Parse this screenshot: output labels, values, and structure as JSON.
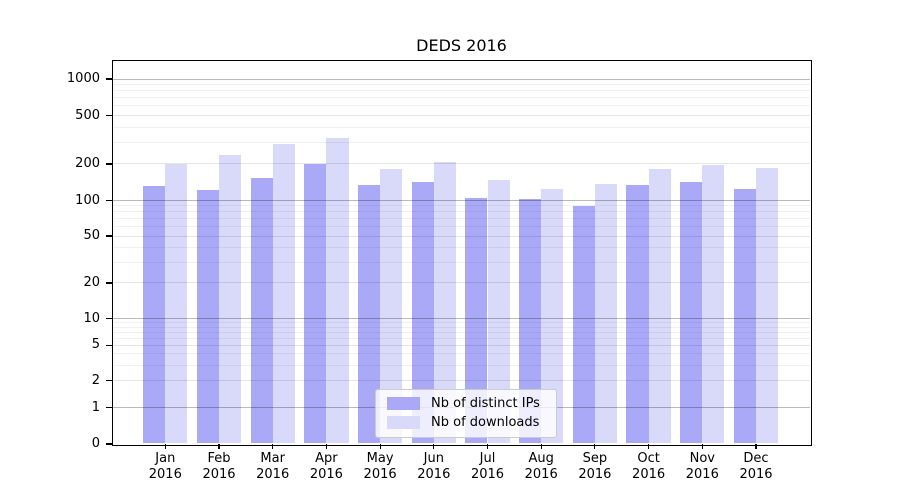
{
  "chart_data": {
    "type": "bar",
    "title": "DEDS 2016",
    "categories": [
      "Jan 2016",
      "Feb 2016",
      "Mar 2016",
      "Apr 2016",
      "May 2016",
      "Jun 2016",
      "Jul 2016",
      "Aug 2016",
      "Sep 2016",
      "Oct 2016",
      "Nov 2016",
      "Dec 2016"
    ],
    "series": [
      {
        "name": "Nb of distinct IPs",
        "color": "#a9a9f8",
        "values": [
          132,
          121,
          154,
          200,
          134,
          143,
          104,
          102,
          90,
          133,
          141,
          124
        ]
      },
      {
        "name": "Nb of downloads",
        "color": "#d9d9f9",
        "values": [
          200,
          236,
          293,
          330,
          181,
          207,
          147,
          124,
          136,
          181,
          195,
          186
        ]
      }
    ],
    "yscale": "symlog",
    "y_ticks": [
      0,
      1,
      2,
      5,
      10,
      20,
      50,
      100,
      200,
      500,
      1000
    ],
    "ylim": [
      0,
      1400
    ],
    "grid": "horizontal major and minor log gridlines",
    "legend_position": "lower center, inside plot"
  },
  "colors": {
    "bar_distinct_ips": "#a9a9f8",
    "bar_downloads": "#d9d9f9",
    "grid_major": "#bababa",
    "grid_minor": "#ededed",
    "axis_spine": "#000000",
    "legend_border": "#cbcbcb",
    "background": "#ffffff"
  }
}
